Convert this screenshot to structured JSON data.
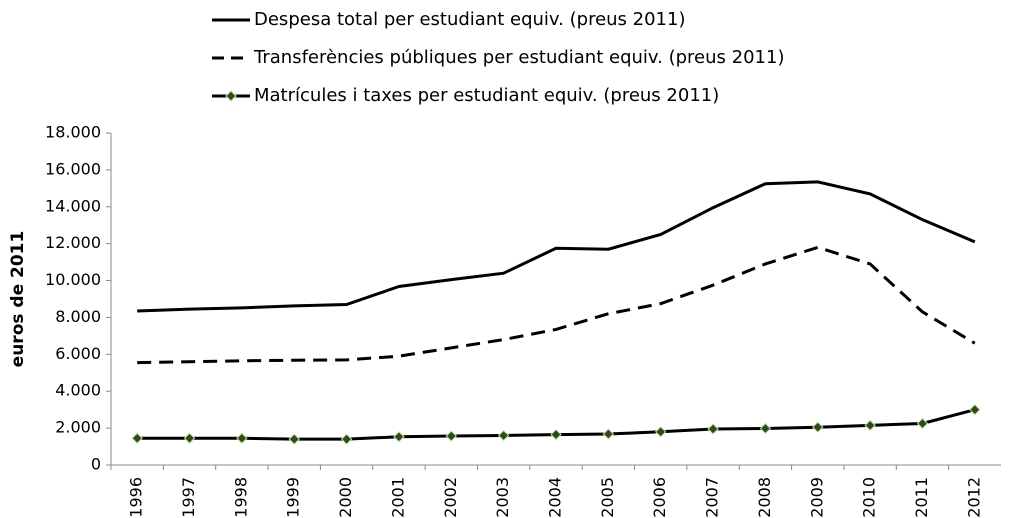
{
  "chart_data": {
    "type": "line",
    "y_label": "euros de 2011",
    "categories": [
      "1996",
      "1997",
      "1998",
      "1999",
      "2000",
      "2001",
      "2002",
      "2003",
      "2004",
      "2005",
      "2006",
      "2007",
      "2008",
      "2009",
      "2010",
      "2011",
      "2012"
    ],
    "series": [
      {
        "name": "Despesa total per estudiant equiv. (preus 2011)",
        "color": "#000000",
        "dash": false,
        "marker": false,
        "values": [
          8350,
          8450,
          8520,
          8630,
          8700,
          9680,
          10050,
          10400,
          11750,
          11700,
          12500,
          13950,
          15250,
          15350,
          14700,
          13300,
          12100
        ]
      },
      {
        "name": "Transferències públiques per estudiant equiv. (preus 2011)",
        "color": "#000000",
        "dash": true,
        "marker": false,
        "values": [
          5550,
          5600,
          5650,
          5680,
          5700,
          5900,
          6350,
          6800,
          7350,
          8200,
          8750,
          9750,
          10900,
          11800,
          10900,
          8300,
          6600
        ]
      },
      {
        "name": "Matrícules i taxes per estudiant equiv. (preus 2011)",
        "color": "#000000",
        "dash": false,
        "marker": true,
        "marker_color": "#2e4a1e",
        "values": [
          1450,
          1450,
          1450,
          1400,
          1400,
          1530,
          1570,
          1600,
          1650,
          1680,
          1800,
          1950,
          1980,
          2050,
          2150,
          2250,
          3000
        ]
      }
    ],
    "ylim": [
      0,
      18000
    ],
    "yticks": [
      0,
      {
        "value": 2000,
        "label": "2.000"
      },
      {
        "value": 4000,
        "label": "4.000"
      },
      {
        "value": 6000,
        "label": "6.000"
      },
      {
        "value": 8000,
        "label": "8.000"
      },
      {
        "value": 10000,
        "label": "10.000"
      },
      {
        "value": 12000,
        "label": "12.000"
      },
      {
        "value": 14000,
        "label": "14.000"
      },
      {
        "value": 16000,
        "label": "16.000"
      },
      {
        "value": 18000,
        "label": "18.000"
      }
    ],
    "grid": false
  }
}
